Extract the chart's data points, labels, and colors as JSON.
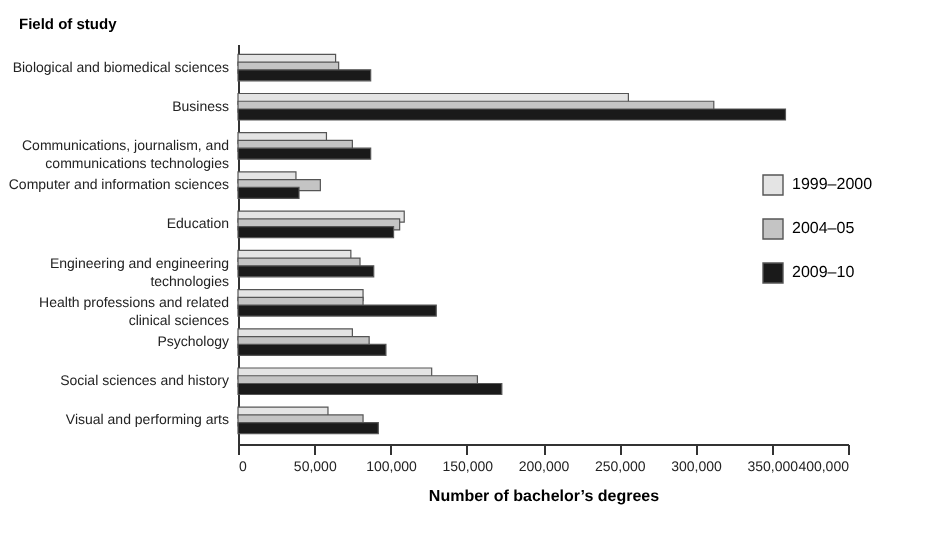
{
  "chart_data": {
    "type": "bar",
    "orientation": "horizontal",
    "ylabel": "Field of study",
    "xlabel": "Number of bachelor’s degrees",
    "categories": [
      "Biological and biomedical sciences",
      "Business",
      "Communications, journalism, and communications technologies",
      "Computer and information sciences",
      "Education",
      "Engineering and engineering technologies",
      "Health professions and related clinical sciences",
      "Psychology",
      "Social sciences and history",
      "Visual and performing arts"
    ],
    "series": [
      {
        "name": "1999–2000",
        "color": "#e4e4e4",
        "values": [
          64000,
          256000,
          58000,
          38000,
          109000,
          74000,
          82000,
          75000,
          127000,
          59000
        ]
      },
      {
        "name": "2004–05",
        "color": "#c4c4c4",
        "values": [
          66000,
          312000,
          75000,
          54000,
          106000,
          80000,
          82000,
          86000,
          157000,
          82000
        ]
      },
      {
        "name": "2009–10",
        "color": "#1a1a1a",
        "values": [
          87000,
          359000,
          87000,
          40000,
          102000,
          89000,
          130000,
          97000,
          173000,
          92000
        ]
      }
    ],
    "xlim": [
      0,
      400000
    ],
    "xticks": [
      0,
      {
        "value": 50000,
        "label": "50,000"
      },
      {
        "value": 100000,
        "label": "100,000"
      },
      {
        "value": 150000,
        "label": "150,000"
      },
      {
        "value": 200000,
        "label": "200,000"
      },
      {
        "value": 250000,
        "label": "250,000"
      },
      {
        "value": 300000,
        "label": "300,000"
      },
      {
        "value": 350000,
        "label": "350,000"
      },
      {
        "value": 400000,
        "label": "400,000"
      }
    ],
    "legend": "right",
    "grid": false
  }
}
